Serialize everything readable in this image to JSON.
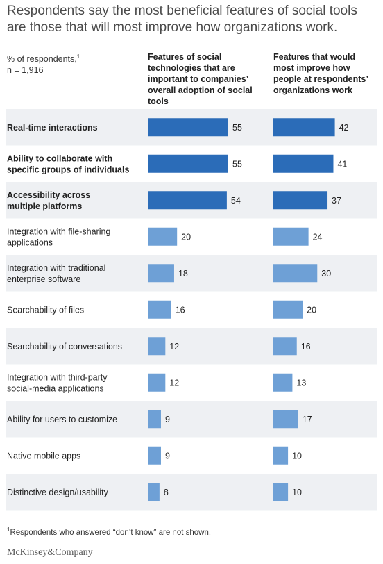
{
  "title": "Respondents say the most beneficial features of social tools are those that will most improve how organizations work.",
  "meta": {
    "unit_label": "% of respondents,",
    "unit_footnote_mark": "1",
    "n": "n = 1,916"
  },
  "columns": {
    "left": "Features of social technologies that are important to companies’ overall adoption of social tools",
    "right": "Features that would most improve how people at respondents’ organizations work"
  },
  "colors": {
    "highlight": "#2b6cb8",
    "normal": "#6ea0d6",
    "row_shade": "#eef0f3"
  },
  "chart_data": {
    "type": "bar",
    "orientation": "horizontal",
    "categories": [
      "Real-time interactions",
      "Ability to collaborate with specific groups of individuals",
      "Accessibility across multiple platforms",
      "Integration with file-sharing applications",
      "Integration with traditional enterprise software",
      "Searchability of files",
      "Searchability of conversations",
      "Integration with third-party social-media applications",
      "Ability for users to customize",
      "Native mobile apps",
      "Distinctive design/usability"
    ],
    "highlighted": [
      true,
      true,
      true,
      false,
      false,
      false,
      false,
      false,
      false,
      false,
      false
    ],
    "series": [
      {
        "name": "Features of social technologies that are important to companies’ overall adoption of social tools",
        "values": [
          55,
          55,
          54,
          20,
          18,
          16,
          12,
          12,
          9,
          9,
          8
        ]
      },
      {
        "name": "Features that would most improve how people at respondents’ organizations work",
        "values": [
          42,
          41,
          37,
          24,
          30,
          20,
          16,
          13,
          17,
          10,
          10
        ]
      }
    ],
    "xlim": [
      0,
      60
    ]
  },
  "footnote": {
    "mark": "1",
    "text": "Respondents who answered “don’t know” are not shown."
  },
  "brand": "McKinsey&Company"
}
